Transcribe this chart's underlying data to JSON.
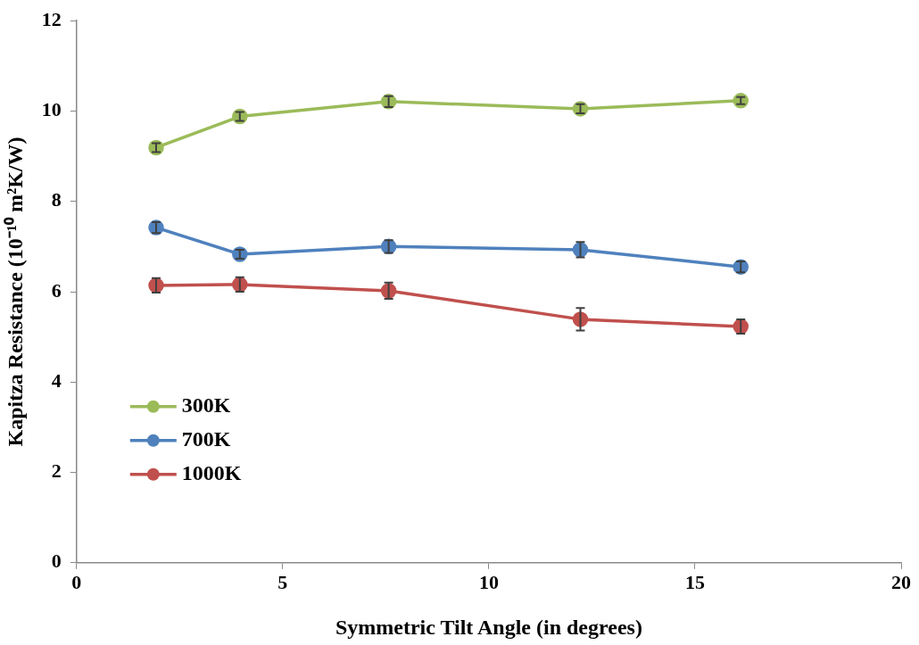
{
  "chart_data": {
    "type": "line",
    "xlabel": "Symmetric Tilt Angle (in degrees)",
    "ylabel": "Kapitza Resistance (10⁻¹⁰ m²K/W)",
    "x": [
      1.93,
      3.96,
      7.57,
      12.22,
      16.11
    ],
    "series": [
      {
        "name": "300K",
        "color": "#9bbb59",
        "values": [
          9.19,
          9.88,
          10.21,
          10.05,
          10.23
        ],
        "errors": [
          0.1,
          0.1,
          0.12,
          0.1,
          0.08
        ]
      },
      {
        "name": "700K",
        "color": "#4f81bd",
        "values": [
          7.42,
          6.83,
          7.0,
          6.93,
          6.55
        ],
        "errors": [
          0.12,
          0.1,
          0.14,
          0.17,
          0.12
        ]
      },
      {
        "name": "1000K",
        "color": "#c0504d",
        "values": [
          6.14,
          6.16,
          6.02,
          5.39,
          5.23
        ],
        "errors": [
          0.16,
          0.16,
          0.18,
          0.25,
          0.16
        ]
      }
    ],
    "xlim": [
      0,
      20
    ],
    "xticks": [
      0,
      5,
      10,
      15,
      20
    ],
    "ylim": [
      0,
      12
    ],
    "yticks": [
      0,
      2,
      4,
      6,
      8,
      10,
      12
    ],
    "grid": false,
    "legend": "bottom left",
    "marker": "circle",
    "line_style": "solid"
  }
}
